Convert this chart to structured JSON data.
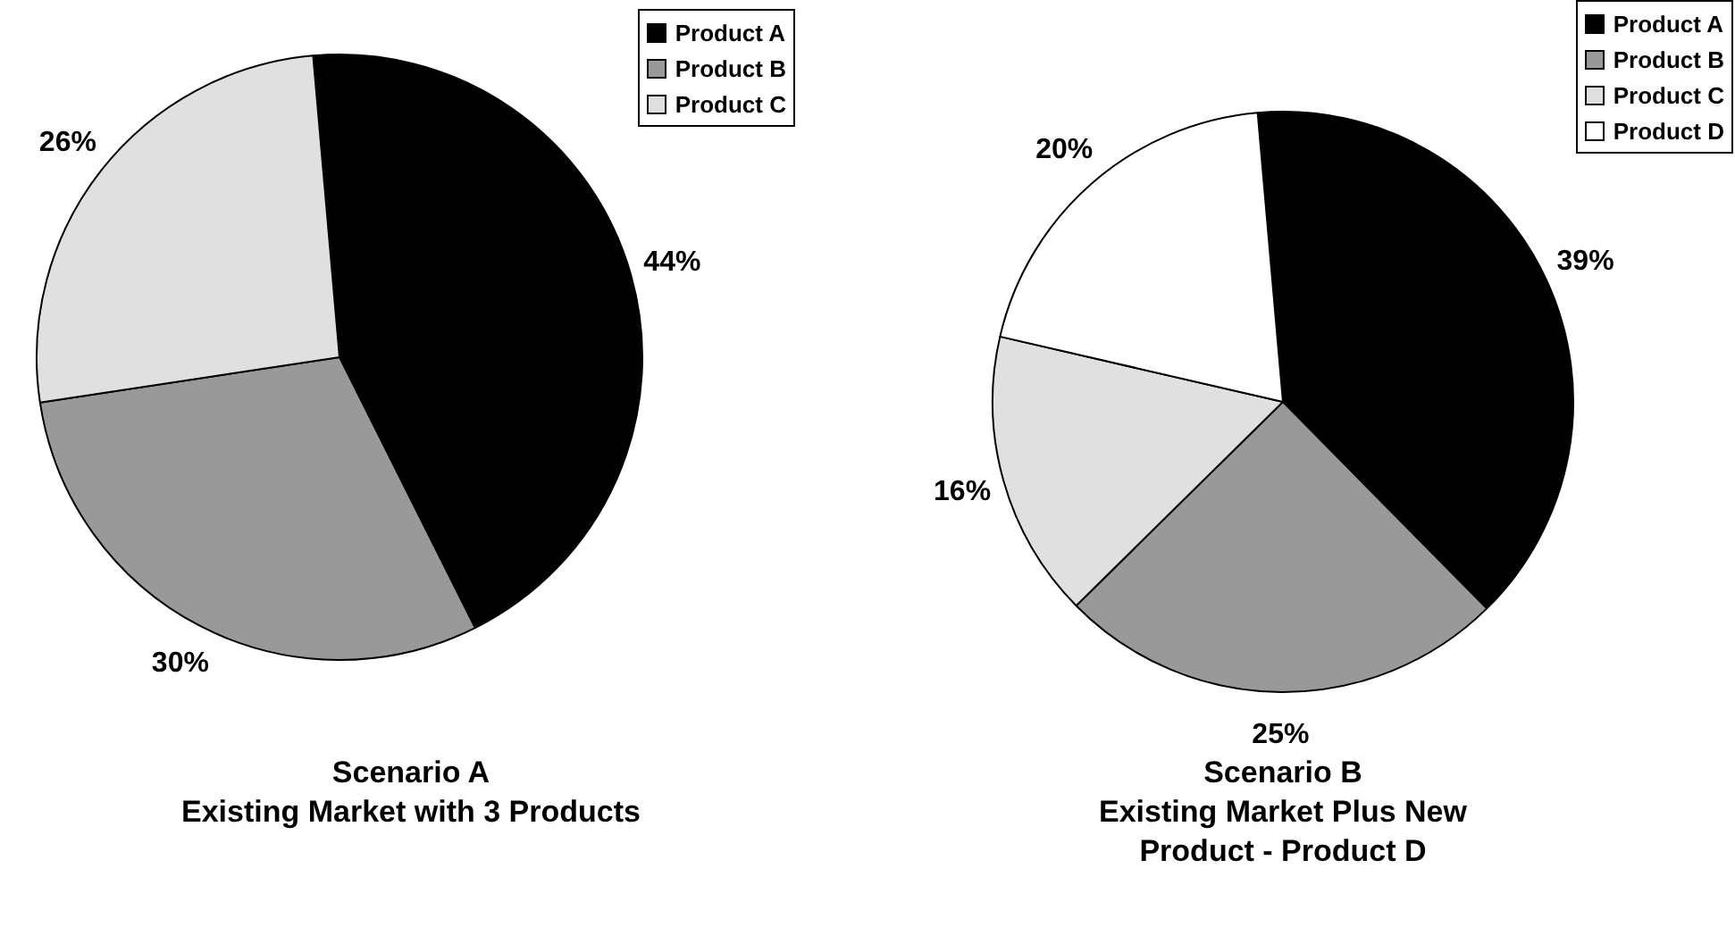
{
  "chart_data": [
    {
      "type": "pie",
      "title": "Scenario A",
      "subtitle": "Existing Market with 3 Products",
      "categories": [
        "Product A",
        "Product B",
        "Product C"
      ],
      "values": [
        44,
        30,
        26
      ],
      "colors": [
        "#000000",
        "#999999",
        "#e0e0e0"
      ],
      "value_labels": [
        "44%",
        "30%",
        "26%"
      ],
      "legend": "top right"
    },
    {
      "type": "pie",
      "title": "Scenario B",
      "subtitle": "Existing Market Plus New Product - Product D",
      "categories": [
        "Product A",
        "Product B",
        "Product C",
        "Product D"
      ],
      "values": [
        39,
        25,
        16,
        20
      ],
      "colors": [
        "#000000",
        "#999999",
        "#e0e0e0",
        "#ffffff"
      ],
      "value_labels": [
        "39%",
        "25%",
        "16%",
        "20%"
      ],
      "legend": "top right"
    }
  ]
}
